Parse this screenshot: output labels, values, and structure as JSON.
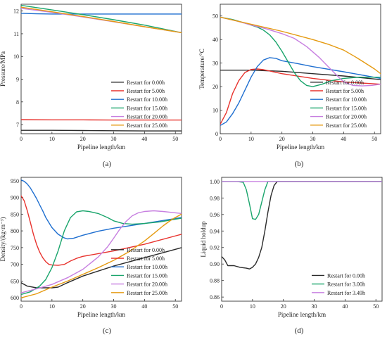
{
  "chart_data": [
    {
      "id": "a",
      "type": "line",
      "panel_label": "(a)",
      "xlabel": "Pipeline length/km",
      "ylabel": "Pressure/MPa",
      "xlim": [
        0,
        52
      ],
      "ylim": [
        6.6,
        12.3
      ],
      "xticks": [
        0,
        10,
        20,
        30,
        40,
        50
      ],
      "yticks": [
        7,
        8,
        9,
        10,
        11,
        12
      ],
      "legend_position": "lower-right",
      "series": [
        {
          "name": "Restart for 0.00h",
          "color": "#2b2b2b",
          "x": [
            0,
            10,
            20,
            30,
            40,
            52
          ],
          "y": [
            6.75,
            6.75,
            6.74,
            6.73,
            6.72,
            6.72
          ]
        },
        {
          "name": "Restart for 5.00h",
          "color": "#e8332e",
          "x": [
            0,
            10,
            20,
            30,
            40,
            52
          ],
          "y": [
            7.22,
            7.21,
            7.21,
            7.2,
            7.2,
            7.2
          ]
        },
        {
          "name": "Restart for 10.00h",
          "color": "#1f6fd0",
          "x": [
            0,
            5,
            10,
            20,
            30,
            40,
            52
          ],
          "y": [
            11.9,
            11.88,
            11.87,
            11.87,
            11.87,
            11.87,
            11.87
          ]
        },
        {
          "name": "Restart for 15.00h",
          "color": "#1aa56c",
          "x": [
            0,
            10,
            20,
            30,
            40,
            52
          ],
          "y": [
            12.25,
            12.05,
            11.84,
            11.62,
            11.38,
            11.05
          ]
        },
        {
          "name": "Restart for 20.00h",
          "color": "#c77fe0",
          "x": [
            0,
            10,
            20,
            30,
            40,
            52
          ],
          "y": [
            12.12,
            11.94,
            11.74,
            11.53,
            11.31,
            11.05
          ]
        },
        {
          "name": "Restart for 25.00h",
          "color": "#e59a10",
          "x": [
            0,
            10,
            20,
            30,
            40,
            52
          ],
          "y": [
            12.17,
            11.97,
            11.76,
            11.54,
            11.31,
            11.05
          ]
        }
      ]
    },
    {
      "id": "b",
      "type": "line",
      "panel_label": "(b)",
      "xlabel": "Pipeline length/km",
      "ylabel": "Temperature/°C",
      "xlim": [
        0,
        52
      ],
      "ylim": [
        0,
        55
      ],
      "xticks": [
        0,
        10,
        20,
        30,
        40,
        50
      ],
      "yticks": [
        0,
        10,
        20,
        30,
        40,
        50
      ],
      "legend_position": "lower-right",
      "series": [
        {
          "name": "Restart for 0.00h",
          "color": "#2b2b2b",
          "x": [
            0,
            10,
            20,
            30,
            40,
            52
          ],
          "y": [
            27,
            27,
            26.5,
            25.5,
            24.5,
            23
          ]
        },
        {
          "name": "Restart for 5.00h",
          "color": "#e8332e",
          "x": [
            0,
            2,
            4,
            6,
            8,
            10,
            12,
            14,
            20,
            30,
            40,
            52
          ],
          "y": [
            4,
            9,
            17,
            22.5,
            26,
            27.3,
            27.5,
            27.2,
            25.5,
            23.5,
            22,
            21
          ]
        },
        {
          "name": "Restart for 10.00h",
          "color": "#1f6fd0",
          "x": [
            0,
            2,
            4,
            6,
            8,
            10,
            12,
            14,
            16,
            18,
            20,
            25,
            30,
            40,
            52
          ],
          "y": [
            3.5,
            5,
            8.5,
            13,
            18.5,
            24,
            28.5,
            31.3,
            32.3,
            32,
            31,
            29.8,
            28.5,
            26.3,
            23.5
          ]
        },
        {
          "name": "Restart for 15.00h",
          "color": "#1aa56c",
          "x": [
            0,
            4,
            8,
            12,
            14,
            16,
            18,
            20,
            22,
            24,
            26,
            28,
            30,
            33,
            36,
            40,
            45,
            52
          ],
          "y": [
            49.5,
            48.5,
            47,
            45.3,
            44,
            42,
            39,
            35,
            30.5,
            26,
            22.5,
            20.5,
            20,
            21,
            22.5,
            23.5,
            24,
            24
          ]
        },
        {
          "name": "Restart for 20.00h",
          "color": "#c77fe0",
          "x": [
            0,
            5,
            10,
            15,
            20,
            24,
            28,
            32,
            35,
            38,
            40,
            43,
            46,
            49,
            52
          ],
          "y": [
            49.5,
            48,
            46.2,
            44.5,
            42.5,
            40.5,
            37,
            32.5,
            28.5,
            24.5,
            22,
            20.5,
            20.3,
            20.5,
            21
          ]
        },
        {
          "name": "Restart for 25.00h",
          "color": "#e59a10",
          "x": [
            0,
            10,
            20,
            30,
            35,
            40,
            44,
            47,
            50,
            52
          ],
          "y": [
            49.5,
            46.5,
            43.5,
            40,
            38,
            35.5,
            32.5,
            30,
            27.5,
            25.5
          ]
        }
      ]
    },
    {
      "id": "c",
      "type": "line",
      "panel_label": "(c)",
      "xlabel": "Pipeline length/km",
      "ylabel": "Density/(kg·m⁻³)",
      "xlim": [
        0,
        52
      ],
      "ylim": [
        590,
        960
      ],
      "xticks": [
        0,
        10,
        20,
        30,
        40,
        50
      ],
      "yticks": [
        600,
        650,
        700,
        750,
        800,
        850,
        900,
        950
      ],
      "legend_position": "lower-right",
      "series": [
        {
          "name": "Restart for 0.00h",
          "color": "#2b2b2b",
          "x": [
            0,
            2,
            5,
            8,
            10,
            12,
            15,
            20,
            30,
            40,
            52
          ],
          "y": [
            645,
            635,
            630,
            630,
            630,
            632,
            645,
            665,
            695,
            720,
            750
          ]
        },
        {
          "name": "Restart for 5.00h",
          "color": "#e8332e",
          "x": [
            0,
            1,
            2,
            3,
            4,
            5,
            6,
            7,
            8,
            9,
            10,
            12,
            14,
            16,
            18,
            20,
            30,
            40,
            52
          ],
          "y": [
            905,
            890,
            860,
            825,
            790,
            760,
            737,
            720,
            708,
            700,
            698,
            697,
            700,
            710,
            718,
            724,
            740,
            760,
            790
          ]
        },
        {
          "name": "Restart for 10.00h",
          "color": "#1f6fd0",
          "x": [
            0,
            1,
            2,
            3,
            4,
            5,
            6,
            7,
            8,
            10,
            12,
            14,
            15,
            17,
            20,
            25,
            30,
            40,
            52
          ],
          "y": [
            952,
            948,
            940,
            928,
            913,
            897,
            878,
            860,
            840,
            810,
            790,
            779,
            776,
            778,
            787,
            799,
            808,
            822,
            840
          ]
        },
        {
          "name": "Restart for 15.00h",
          "color": "#1aa56c",
          "x": [
            0,
            3,
            6,
            8,
            10,
            12,
            14,
            16,
            18,
            20,
            22,
            25,
            28,
            30,
            33,
            36,
            40,
            45,
            52
          ],
          "y": [
            610,
            618,
            635,
            655,
            690,
            740,
            800,
            840,
            857,
            860,
            858,
            852,
            840,
            830,
            822,
            820,
            822,
            827,
            838
          ]
        },
        {
          "name": "Restart for 20.00h",
          "color": "#c77fe0",
          "x": [
            0,
            5,
            10,
            15,
            20,
            25,
            28,
            30,
            32,
            34,
            36,
            38,
            40,
            43,
            46,
            49,
            52
          ],
          "y": [
            615,
            627,
            640,
            660,
            685,
            722,
            752,
            778,
            805,
            828,
            845,
            854,
            858,
            860,
            858,
            855,
            852
          ]
        },
        {
          "name": "Restart for 25.00h",
          "color": "#e59a10",
          "x": [
            0,
            5,
            10,
            15,
            20,
            25,
            30,
            35,
            40,
            43,
            46,
            49,
            52
          ],
          "y": [
            600,
            612,
            632,
            650,
            670,
            690,
            712,
            738,
            770,
            792,
            815,
            835,
            850
          ]
        }
      ]
    },
    {
      "id": "d",
      "type": "line",
      "panel_label": "(d)",
      "xlabel": "Pipeline length/km",
      "ylabel": "Liquid holdup",
      "xlim": [
        0,
        52
      ],
      "ylim": [
        0.855,
        1.005
      ],
      "xticks": [
        0,
        10,
        20,
        30,
        40,
        50
      ],
      "yticks": [
        0.86,
        0.88,
        0.9,
        0.92,
        0.94,
        0.96,
        0.98,
        1.0
      ],
      "ytick_labels": [
        "0.86",
        "0.88",
        "0.90",
        "0.92",
        "0.94",
        "0.96",
        "0.98",
        "1.00"
      ],
      "legend_position": "lower-right",
      "series": [
        {
          "name": "Restart for 0.00h",
          "color": "#2b2b2b",
          "x": [
            0,
            1,
            2,
            4,
            6,
            8,
            9,
            10,
            11,
            12,
            13,
            14,
            15,
            16,
            17,
            18,
            20,
            52
          ],
          "y": [
            0.909,
            0.905,
            0.898,
            0.898,
            0.896,
            0.895,
            0.894,
            0.896,
            0.9,
            0.908,
            0.92,
            0.94,
            0.963,
            0.983,
            0.995,
            1.0,
            1.0,
            1.0
          ]
        },
        {
          "name": "Restart for 3.00h",
          "color": "#1aa56c",
          "x": [
            0,
            5,
            7,
            8,
            9,
            10,
            11,
            12,
            13,
            14,
            15,
            20,
            52
          ],
          "y": [
            1.0,
            1.0,
            0.999,
            0.99,
            0.973,
            0.955,
            0.954,
            0.96,
            0.975,
            0.99,
            1.0,
            1.0,
            1.0
          ]
        },
        {
          "name": "Restart for 3.49h",
          "color": "#c77fe0",
          "x": [
            0,
            52
          ],
          "y": [
            1.0,
            1.0
          ]
        }
      ]
    }
  ]
}
